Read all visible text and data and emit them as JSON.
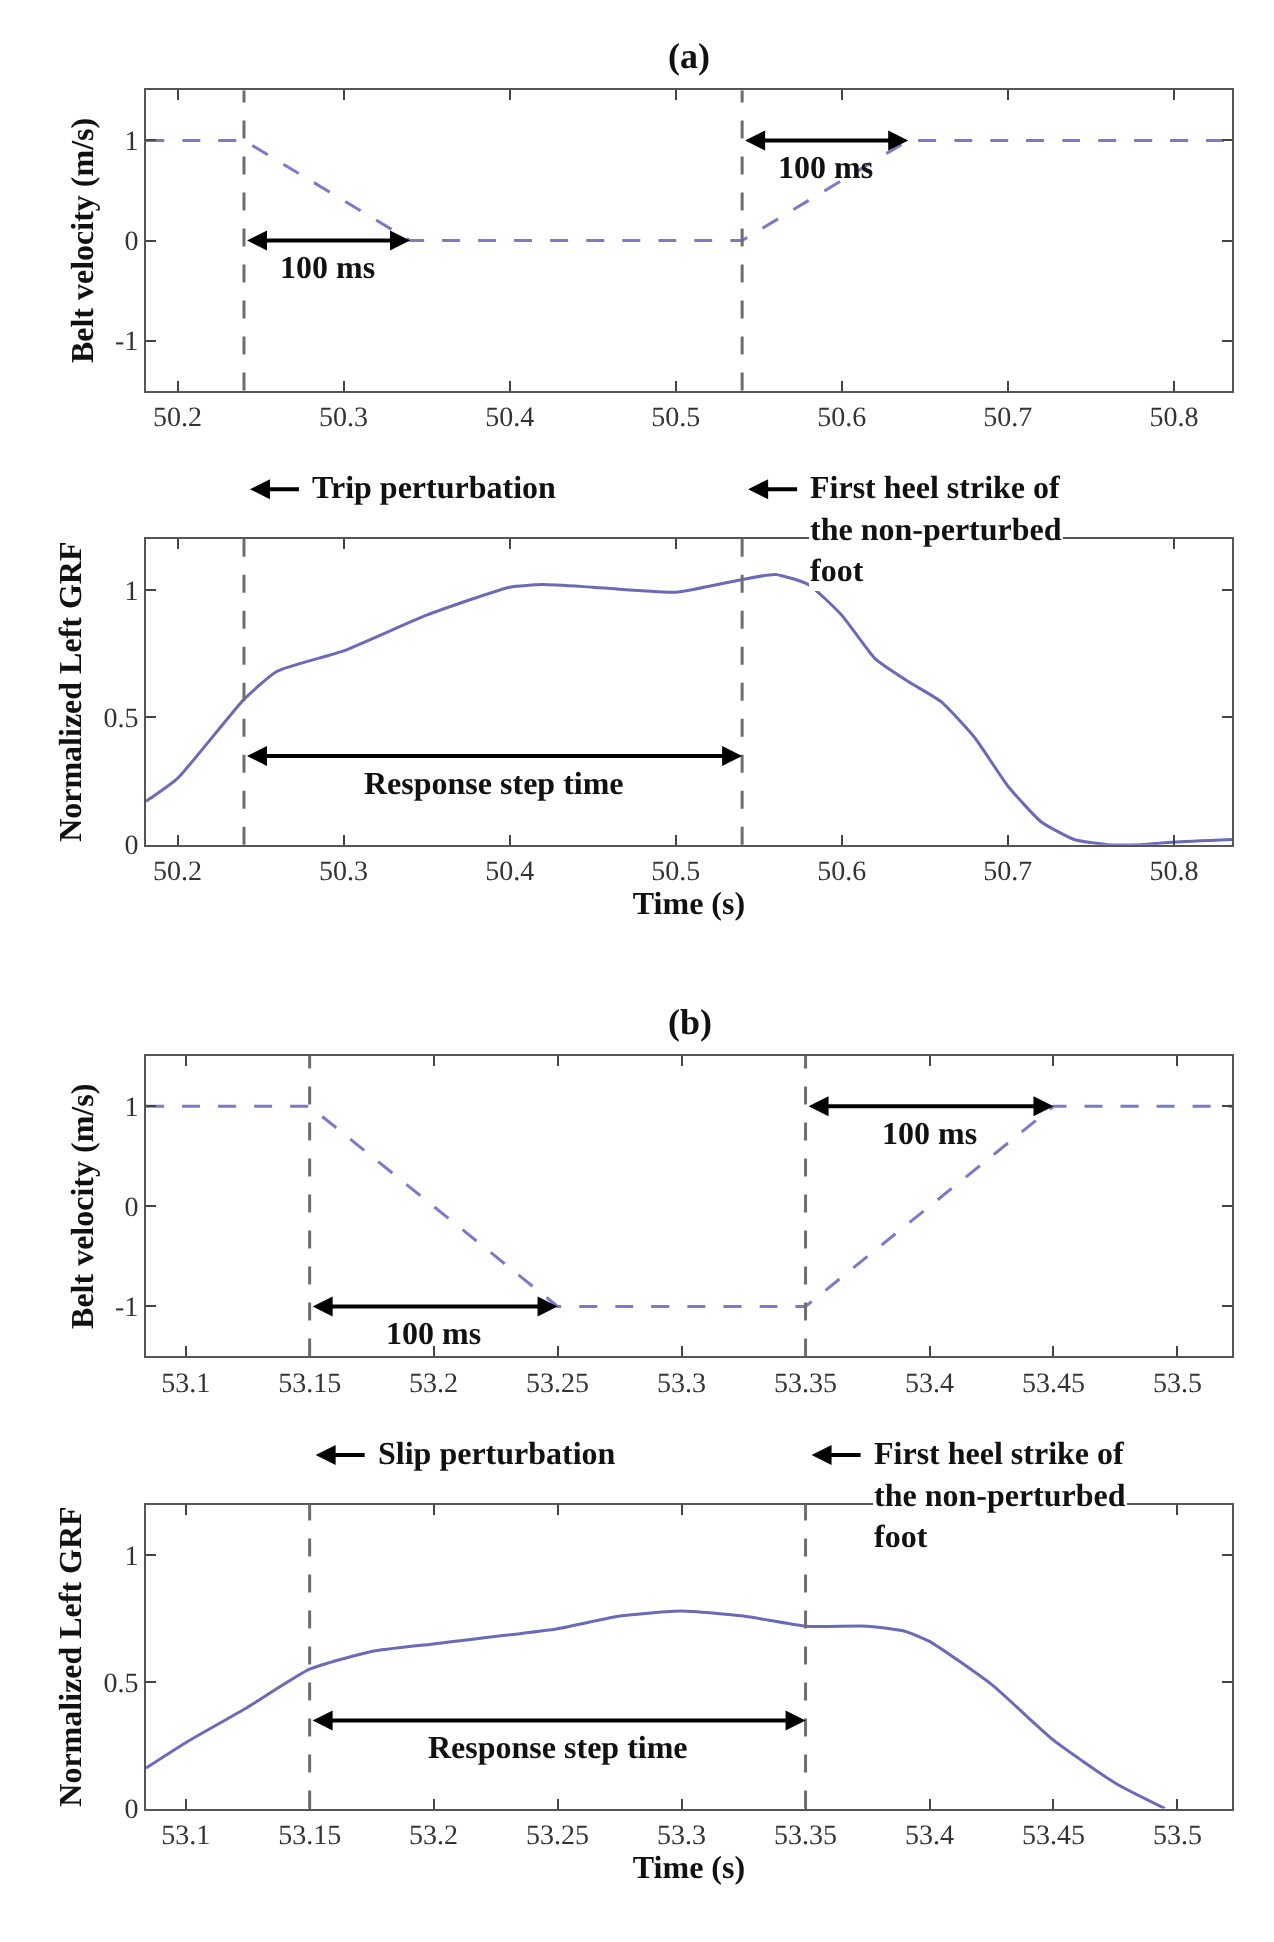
{
  "chart_data": [
    {
      "type": "line",
      "title": "(a)",
      "ylabel": "Belt velocity (m/s)",
      "line_style": "dashed",
      "series": [
        {
          "color": "#7a7ac6",
          "x": [
            50.181,
            50.24,
            50.34,
            50.54,
            50.64,
            50.835
          ],
          "values": [
            1,
            1,
            0,
            0,
            1,
            1
          ]
        }
      ],
      "xlim": [
        50.181,
        50.835
      ],
      "xticks": [
        50.2,
        50.3,
        50.4,
        50.5,
        50.6,
        50.7,
        50.8
      ],
      "ylim": [
        -1.5,
        1.5
      ],
      "yticks": [
        -1,
        0,
        1
      ],
      "ref_lines": [
        {
          "axis": "x",
          "value": 50.24,
          "color": "#6e6e6e",
          "line_style": "dashed"
        },
        {
          "axis": "x",
          "value": 50.54,
          "color": "#6e6e6e",
          "line_style": "dashed"
        }
      ],
      "annotations": [
        {
          "text": "100 ms",
          "x": 50.34,
          "y": 0
        },
        {
          "text": "100 ms",
          "x": 50.64,
          "y": 1
        }
      ]
    },
    {
      "type": "line",
      "xlabel": "Time (s)",
      "ylabel": "Normalized Left GRF",
      "line_style": "solid",
      "series": [
        {
          "color": "#6a6ab8",
          "x": [
            50.181,
            50.2,
            50.24,
            50.26,
            50.3,
            50.35,
            50.4,
            50.42,
            50.45,
            50.5,
            50.54,
            50.56,
            50.58,
            50.6,
            50.62,
            50.64,
            50.66,
            50.68,
            50.7,
            50.72,
            50.74,
            50.76,
            50.78,
            50.8,
            50.835
          ],
          "values": [
            0.17,
            0.26,
            0.57,
            0.68,
            0.76,
            0.9,
            1.01,
            1.02,
            1.01,
            0.99,
            1.04,
            1.06,
            1.02,
            0.9,
            0.73,
            0.64,
            0.56,
            0.42,
            0.23,
            0.09,
            0.02,
            0,
            0,
            0.01,
            0.02
          ]
        }
      ],
      "xlim": [
        50.181,
        50.835
      ],
      "xticks": [
        50.2,
        50.3,
        50.4,
        50.5,
        50.6,
        50.7,
        50.8
      ],
      "ylim": [
        0,
        1.2
      ],
      "yticks": [
        0,
        0.5,
        1
      ],
      "ref_lines": [
        {
          "axis": "x",
          "value": 50.24,
          "label": "Trip perturbation",
          "color": "#6e6e6e",
          "line_style": "dashed"
        },
        {
          "axis": "x",
          "value": 50.54,
          "label": "First heel strike of\nthe non-perturbed\nfoot",
          "color": "#6e6e6e",
          "line_style": "dashed"
        }
      ],
      "annotations": [
        "Response step time"
      ]
    },
    {
      "type": "line",
      "title": "(b)",
      "ylabel": "Belt velocity (m/s)",
      "line_style": "dashed",
      "series": [
        {
          "color": "#7a7ac6",
          "x": [
            53.084,
            53.15,
            53.25,
            53.35,
            53.45,
            53.522
          ],
          "values": [
            1,
            1,
            -1,
            -1,
            1,
            1
          ]
        }
      ],
      "xlim": [
        53.084,
        53.522
      ],
      "xticks": [
        53.1,
        53.15,
        53.2,
        53.25,
        53.3,
        53.35,
        53.4,
        53.45,
        53.5
      ],
      "ylim": [
        -1.5,
        1.5
      ],
      "yticks": [
        -1,
        0,
        1
      ],
      "ref_lines": [
        {
          "axis": "x",
          "value": 53.15,
          "color": "#6e6e6e",
          "line_style": "dashed"
        },
        {
          "axis": "x",
          "value": 53.35,
          "color": "#6e6e6e",
          "line_style": "dashed"
        }
      ],
      "annotations": [
        {
          "text": "100 ms",
          "x": 53.25,
          "y": -1
        },
        {
          "text": "100 ms",
          "x": 53.45,
          "y": 1
        }
      ]
    },
    {
      "type": "line",
      "xlabel": "Time (s)",
      "ylabel": "Normalized Left GRF",
      "line_style": "solid",
      "series": [
        {
          "color": "#6a6ab8",
          "x": [
            53.084,
            53.1,
            53.125,
            53.15,
            53.175,
            53.2,
            53.25,
            53.275,
            53.3,
            53.325,
            53.35,
            53.375,
            53.39,
            53.4,
            53.425,
            53.45,
            53.475,
            53.495
          ],
          "values": [
            0.16,
            0.26,
            0.4,
            0.55,
            0.62,
            0.65,
            0.71,
            0.76,
            0.78,
            0.76,
            0.72,
            0.72,
            0.7,
            0.66,
            0.49,
            0.27,
            0.1,
            0
          ]
        }
      ],
      "xlim": [
        53.084,
        53.522
      ],
      "xticks": [
        53.1,
        53.15,
        53.2,
        53.25,
        53.3,
        53.35,
        53.4,
        53.45,
        53.5
      ],
      "ylim": [
        0,
        1.2
      ],
      "yticks": [
        0,
        0.5,
        1
      ],
      "ref_lines": [
        {
          "axis": "x",
          "value": 53.15,
          "label": "Slip perturbation",
          "color": "#6e6e6e",
          "line_style": "dashed"
        },
        {
          "axis": "x",
          "value": 53.35,
          "label": "First heel strike of\nthe non-perturbed\nfoot",
          "color": "#6e6e6e",
          "line_style": "dashed"
        }
      ],
      "annotations": [
        "Response step time"
      ]
    }
  ]
}
